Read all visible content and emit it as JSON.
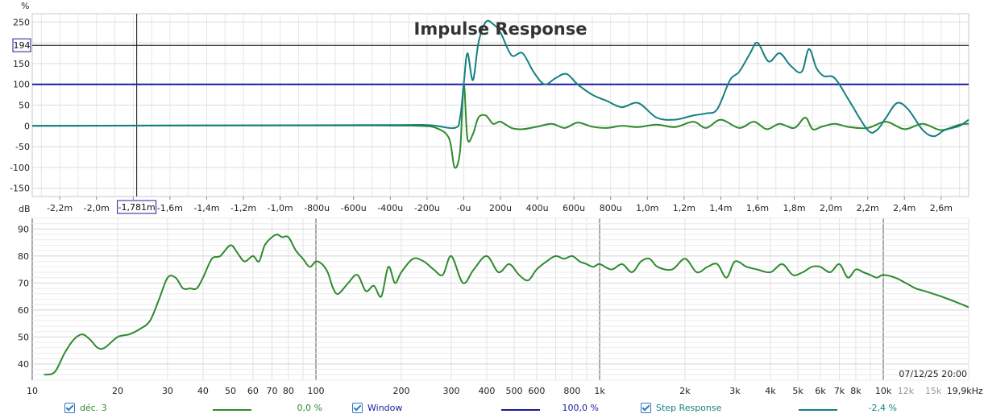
{
  "chart_data": [
    {
      "type": "line",
      "title": "Impulse Response",
      "ylabel": "%",
      "xlim": [
        -2.35,
        2.75
      ],
      "ylim": [
        -170,
        270
      ],
      "x_unit": "ms",
      "yticks": [
        250,
        200,
        150,
        100,
        50,
        0,
        -50,
        -100,
        -150
      ],
      "xtick_labels": [
        "-2,2m",
        "-2,0m",
        "-1,8m",
        "-1,6m",
        "-1,4m",
        "-1,2m",
        "-1,0m",
        "-800u",
        "-600u",
        "-400u",
        "-200u",
        "-0u",
        "200u",
        "400u",
        "600u",
        "800u",
        "1,0m",
        "1,2m",
        "1,4m",
        "1,6m",
        "1,8m",
        "2,0m",
        "2,2m",
        "2,4m",
        "2,6m"
      ],
      "xtick_values": [
        -2.2,
        -2.0,
        -1.8,
        -1.6,
        -1.4,
        -1.2,
        -1.0,
        -0.8,
        -0.6,
        -0.4,
        -0.2,
        0,
        0.2,
        0.4,
        0.6,
        0.8,
        1.0,
        1.2,
        1.4,
        1.6,
        1.8,
        2.0,
        2.2,
        2.4,
        2.6
      ],
      "cursor_x_label": "-1,781m",
      "cursor_x": -1.781,
      "cursor_y_label": "194",
      "cursor_y": 194,
      "grid": true,
      "series": [
        {
          "name": "déc. 3",
          "color": "#2e8b2e",
          "x": [
            -2.35,
            -1.5,
            -0.5,
            -0.25,
            -0.15,
            -0.08,
            -0.05,
            -0.02,
            0.0,
            0.02,
            0.05,
            0.08,
            0.12,
            0.16,
            0.2,
            0.26,
            0.32,
            0.4,
            0.48,
            0.55,
            0.62,
            0.7,
            0.78,
            0.86,
            0.95,
            1.05,
            1.15,
            1.25,
            1.32,
            1.4,
            1.5,
            1.58,
            1.65,
            1.72,
            1.8,
            1.86,
            1.9,
            1.95,
            2.02,
            2.1,
            2.2,
            2.3,
            2.4,
            2.5,
            2.6,
            2.7,
            2.75
          ],
          "y": [
            0,
            1,
            1,
            0,
            -5,
            -30,
            -100,
            -60,
            100,
            -30,
            -20,
            20,
            25,
            5,
            10,
            -5,
            -8,
            -2,
            5,
            -5,
            8,
            -2,
            -5,
            0,
            -3,
            3,
            -3,
            10,
            -5,
            15,
            -5,
            10,
            -8,
            5,
            -5,
            20,
            -8,
            -2,
            5,
            -3,
            -5,
            10,
            -8,
            5,
            -10,
            3,
            5
          ]
        },
        {
          "name": "Window",
          "color": "#1a1aa0",
          "x": [
            -2.35,
            2.75
          ],
          "y": [
            100,
            100
          ]
        },
        {
          "name": "Step Response",
          "color": "#158080",
          "x": [
            -2.35,
            -0.5,
            -0.2,
            -0.05,
            -0.02,
            0.0,
            0.02,
            0.05,
            0.08,
            0.12,
            0.16,
            0.2,
            0.26,
            0.32,
            0.38,
            0.44,
            0.5,
            0.56,
            0.62,
            0.7,
            0.78,
            0.86,
            0.95,
            1.05,
            1.15,
            1.25,
            1.32,
            1.38,
            1.45,
            1.5,
            1.56,
            1.6,
            1.66,
            1.72,
            1.78,
            1.84,
            1.88,
            1.92,
            1.96,
            2.02,
            2.1,
            2.2,
            2.25,
            2.3,
            2.36,
            2.42,
            2.5,
            2.56,
            2.62,
            2.7,
            2.75
          ],
          "y": [
            0,
            2,
            2,
            -5,
            20,
            100,
            175,
            110,
            200,
            250,
            245,
            225,
            170,
            175,
            130,
            100,
            115,
            125,
            100,
            75,
            60,
            45,
            55,
            20,
            15,
            25,
            30,
            40,
            110,
            130,
            175,
            200,
            155,
            175,
            145,
            130,
            185,
            140,
            120,
            115,
            60,
            -10,
            -10,
            20,
            55,
            40,
            -10,
            -25,
            -10,
            0,
            15
          ]
        }
      ]
    },
    {
      "type": "line",
      "ylabel": "dB",
      "xlim": [
        10,
        20000
      ],
      "x_scale": "log",
      "ylim": [
        34,
        94
      ],
      "yticks": [
        90,
        80,
        70,
        60,
        50,
        40
      ],
      "xtick_labels": [
        "10",
        "20",
        "30",
        "40",
        "50",
        "60",
        "70",
        "80",
        "100",
        "200",
        "300",
        "400",
        "500",
        "600",
        "800",
        "1k",
        "2k",
        "3k",
        "4k",
        "5k",
        "6k",
        "7k",
        "8k",
        "10k",
        "12k",
        "15k",
        "19,9kHz"
      ],
      "xtick_values": [
        10,
        20,
        30,
        40,
        50,
        60,
        70,
        80,
        100,
        200,
        300,
        400,
        500,
        600,
        800,
        1000,
        2000,
        3000,
        4000,
        5000,
        6000,
        7000,
        8000,
        10000,
        12000,
        15000,
        19900
      ],
      "timestamp": "07/12/25 20:00",
      "grid": true,
      "series": [
        {
          "name": "déc. 3",
          "color": "#2e8b2e",
          "x": [
            11,
            12,
            13,
            14,
            15,
            16,
            17,
            18,
            20,
            22,
            24,
            26,
            28,
            30,
            32,
            34,
            36,
            38,
            40,
            43,
            46,
            50,
            53,
            56,
            60,
            63,
            66,
            70,
            73,
            76,
            80,
            85,
            90,
            95,
            100,
            105,
            110,
            115,
            120,
            130,
            140,
            150,
            160,
            170,
            180,
            190,
            200,
            220,
            240,
            260,
            280,
            300,
            330,
            360,
            400,
            440,
            480,
            520,
            560,
            600,
            650,
            700,
            750,
            800,
            850,
            900,
            950,
            1000,
            1100,
            1200,
            1300,
            1400,
            1500,
            1600,
            1800,
            2000,
            2200,
            2400,
            2600,
            2800,
            3000,
            3300,
            3600,
            4000,
            4400,
            4800,
            5200,
            5600,
            6000,
            6500,
            7000,
            7500,
            8000,
            8500,
            9000,
            9500,
            10000,
            11000,
            12000,
            13000,
            14000,
            15000,
            16000,
            17000,
            18000,
            19000,
            20000
          ],
          "y": [
            36,
            37,
            44,
            49,
            51,
            49,
            46,
            46,
            50,
            51,
            53,
            56,
            64,
            72,
            72,
            68,
            68,
            68,
            72,
            79,
            80,
            84,
            81,
            78,
            80,
            78,
            84,
            87,
            88,
            87,
            87,
            82,
            79,
            76,
            78,
            77,
            74,
            68,
            66,
            70,
            73,
            67,
            69,
            65,
            76,
            70,
            74,
            79,
            78,
            75,
            73,
            80,
            70,
            75,
            80,
            74,
            77,
            73,
            71,
            75,
            78,
            80,
            79,
            80,
            78,
            77,
            76,
            77,
            75,
            77,
            74,
            78,
            79,
            76,
            75,
            79,
            74,
            76,
            77,
            72,
            78,
            76,
            75,
            74,
            77,
            73,
            74,
            76,
            76,
            74,
            77,
            72,
            75,
            74,
            73,
            72,
            73,
            72,
            70,
            68,
            67,
            66,
            65,
            64,
            63,
            62,
            61
          ]
        }
      ]
    }
  ],
  "legend": [
    {
      "name": "déc. 3",
      "value": "0,0 %",
      "color": "#2e8b2e"
    },
    {
      "name": "Window",
      "value": "100,0 %",
      "color": "#1a1aa0"
    },
    {
      "name": "Step Response",
      "value": "-2,4 %",
      "color": "#158080"
    }
  ]
}
